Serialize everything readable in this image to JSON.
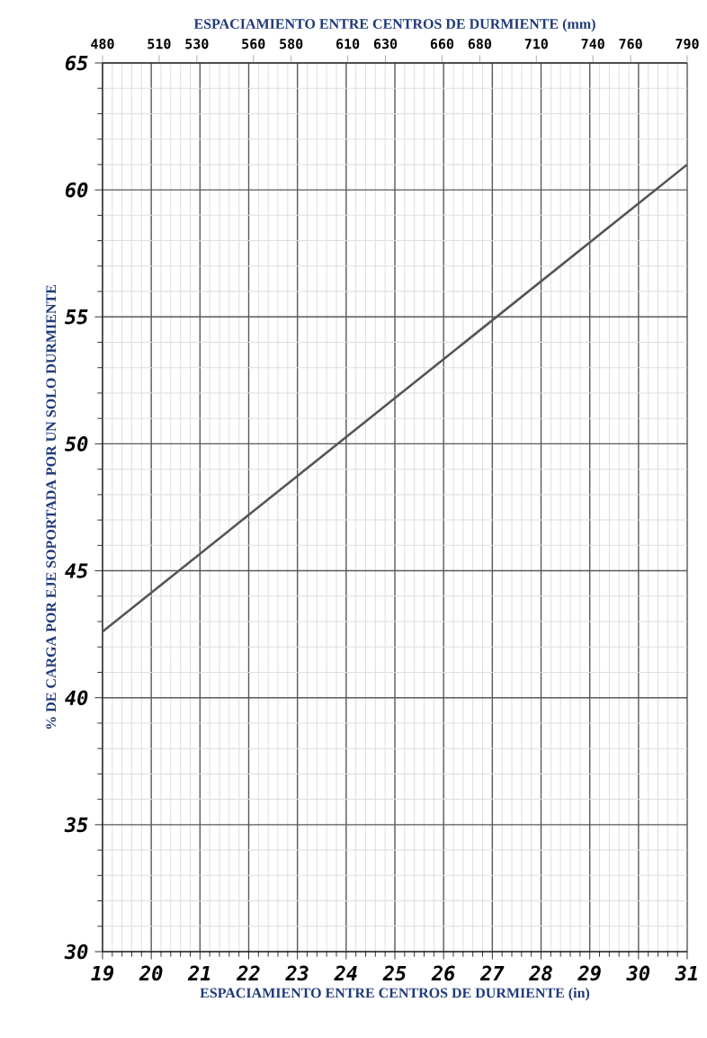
{
  "chart_data": {
    "type": "line",
    "xlabel": "ESPACIAMIENTO ENTRE CENTROS DE DURMIENTE (in)",
    "x2label": "ESPACIAMIENTO ENTRE CENTROS DE DURMIENTE (mm)",
    "ylabel": "% DE CARGA POR EJE SOPORTADA POR UN SOLO DURMIENTE",
    "x": [
      19,
      31
    ],
    "series": [
      {
        "color": "#555555",
        "values": [
          42.6,
          61.0
        ]
      }
    ],
    "xlim": [
      19,
      31
    ],
    "xticks": [
      19,
      20,
      21,
      22,
      23,
      24,
      25,
      26,
      27,
      28,
      29,
      30,
      31
    ],
    "x2lim": [
      480,
      790
    ],
    "x2ticks": [
      480,
      510,
      530,
      560,
      580,
      610,
      630,
      660,
      680,
      710,
      740,
      760,
      790
    ],
    "ylim": [
      30,
      65
    ],
    "yticks": [
      30,
      35,
      40,
      45,
      50,
      55,
      60,
      65
    ],
    "grid": true,
    "marker": "none",
    "line_style": "solid"
  }
}
